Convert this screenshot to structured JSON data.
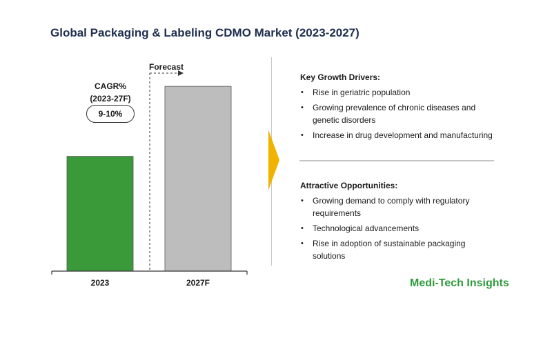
{
  "title": "Global Packaging & Labeling CDMO Market (2023-2027)",
  "chart_data": {
    "type": "bar",
    "categories": [
      "2023",
      "2027F"
    ],
    "values": [
      59,
      95
    ],
    "value_scale": "relative (no axis printed)",
    "bar_colors": [
      "#3a9a3a",
      "#bdbdbd"
    ],
    "ylim": [
      0,
      100
    ],
    "grid": false,
    "annotations": {
      "cagr_label": "CAGR%\n(2023-27F)",
      "cagr_value": "9-10%",
      "forecast_label": "Forecast"
    }
  },
  "key_growth_drivers": {
    "heading": "Key Growth Drivers:",
    "items": [
      "Rise in geriatric population",
      "Growing prevalence of chronic diseases and genetic disorders",
      "Increase in  drug development and manufacturing"
    ]
  },
  "attractive_opportunities": {
    "heading": "Attractive Opportunities:",
    "items": [
      "Growing demand to comply with regulatory requirements",
      "Technological advancements",
      "Rise in adoption of sustainable packaging solutions"
    ]
  },
  "brand": "Medi-Tech Insights",
  "colors": {
    "arrow": "#f0b400",
    "brand": "#2e9a3b",
    "title": "#1f2f4f"
  }
}
